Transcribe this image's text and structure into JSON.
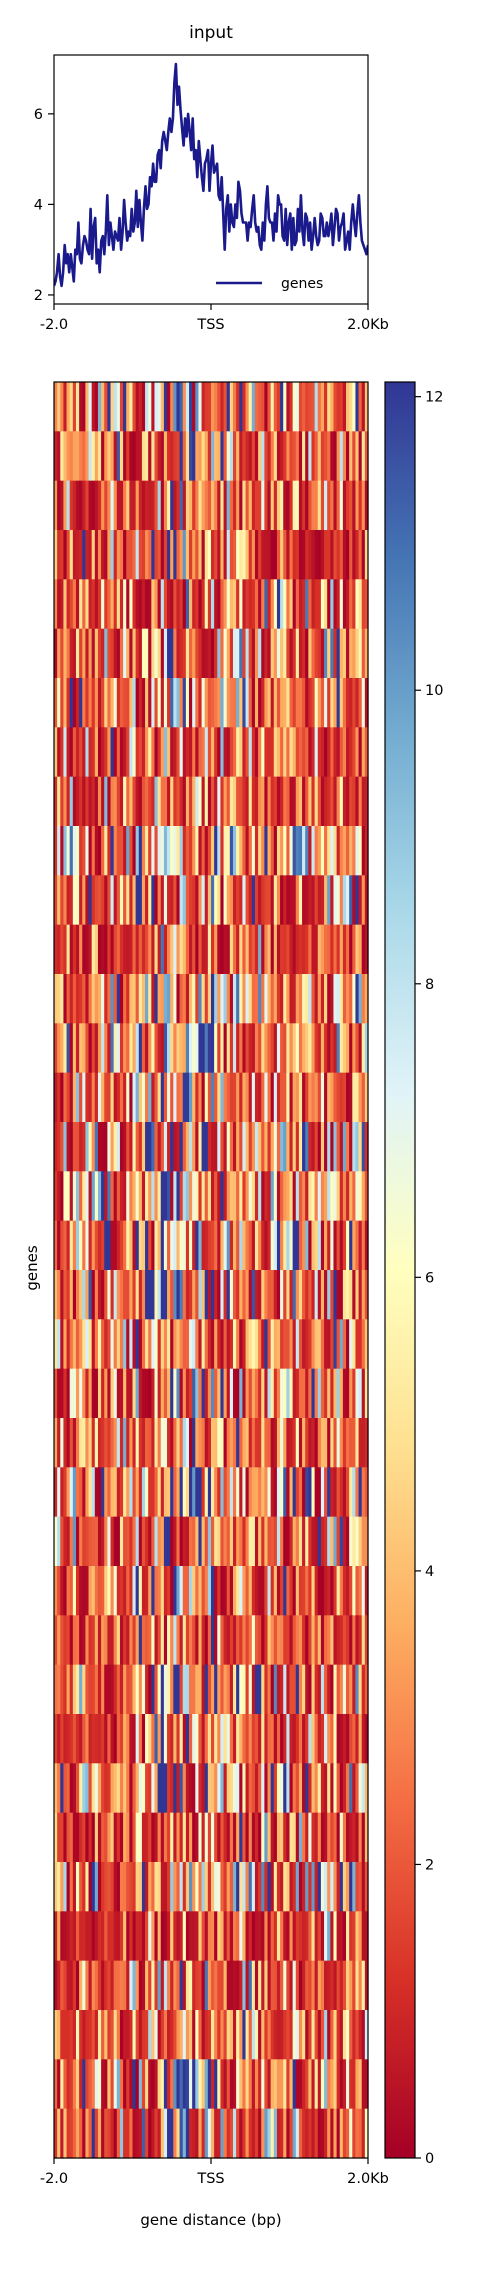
{
  "chart_data": [
    {
      "type": "line",
      "title": "input",
      "xlabel": "",
      "ylabel": "",
      "x_tick_labels": [
        "-2.0",
        "TSS",
        "2.0Kb"
      ],
      "y_ticks": [
        2,
        4,
        6
      ],
      "ylim": [
        1.8,
        7.3
      ],
      "xlim": [
        -2000,
        2000
      ],
      "legend": {
        "placement": "lower-right",
        "entries": [
          "genes"
        ]
      },
      "series": [
        {
          "name": "genes",
          "color": "#1a1a8c",
          "x_step_bp": 40,
          "values": [
            2.2,
            2.3,
            2.5,
            2.9,
            2.4,
            2.2,
            2.5,
            3.1,
            2.7,
            2.9,
            2.5,
            2.9,
            2.6,
            2.3,
            3.0,
            2.9,
            3.6,
            2.8,
            2.7,
            3.1,
            3.3,
            3.2,
            3.0,
            2.9,
            3.9,
            2.8,
            3.5,
            3.7,
            2.7,
            3.0,
            2.5,
            3.2,
            3.3,
            2.9,
            3.4,
            4.2,
            3.1,
            3.6,
            3.3,
            3.0,
            3.4,
            3.3,
            3.2,
            3.7,
            3.0,
            3.4,
            4.1,
            3.6,
            3.2,
            3.4,
            3.3,
            3.9,
            3.4,
            3.6,
            4.3,
            3.5,
            4.1,
            3.6,
            3.2,
            3.9,
            4.4,
            3.9,
            4.0,
            4.6,
            4.4,
            4.9,
            4.5,
            4.5,
            5.1,
            5.2,
            4.8,
            5.4,
            5.6,
            5.4,
            5.2,
            5.6,
            5.9,
            5.6,
            5.9,
            6.7,
            7.1,
            6.2,
            6.6,
            6.1,
            5.7,
            5.3,
            5.9,
            5.5,
            6.0,
            5.6,
            5.2,
            5.9,
            5.0,
            5.2,
            4.6,
            5.4,
            5.0,
            4.6,
            4.3,
            4.9,
            5.0,
            5.2,
            4.3,
            4.9,
            5.3,
            4.7,
            4.8,
            4.9,
            4.2,
            4.1,
            4.6,
            3.8,
            3.0,
            3.9,
            4.2,
            3.4,
            4.0,
            3.6,
            3.5,
            4.0,
            3.7,
            4.5,
            4.3,
            3.8,
            3.6,
            3.6,
            3.6,
            3.2,
            3.6,
            3.5,
            3.9,
            4.2,
            3.6,
            3.4,
            3.5,
            3.1,
            3.0,
            3.6,
            3.2,
            4.0,
            4.4,
            3.7,
            3.6,
            3.6,
            3.2,
            3.8,
            3.4,
            4.2,
            4.0,
            4.0,
            3.3,
            3.2,
            3.9,
            3.1,
            3.6,
            3.8,
            3.0,
            3.7,
            3.1,
            3.2,
            3.9,
            3.4,
            4.2,
            3.4,
            3.1,
            3.8,
            3.7,
            3.2,
            3.6,
            3.0,
            3.3,
            3.7,
            3.3,
            3.1,
            3.2,
            3.8,
            3.7,
            3.3,
            3.3,
            3.6,
            3.3,
            3.5,
            3.8,
            3.1,
            3.5,
            3.9,
            3.8,
            3.2,
            3.5,
            3.6,
            3.8,
            3.0,
            3.2,
            3.4,
            3.0,
            3.6,
            4.0,
            3.6,
            3.3,
            3.8,
            4.2,
            3.6,
            3.2,
            3.1,
            3.0,
            2.9,
            3.1
          ]
        }
      ]
    },
    {
      "type": "heatmap",
      "title": "",
      "xlabel": "gene distance (bp)",
      "ylabel": "genes",
      "x_tick_labels": [
        "-2.0",
        "TSS",
        "2.0Kb"
      ],
      "colormap": "RdYlBu",
      "colormap_stops": [
        "#a50026",
        "#d73027",
        "#f46d43",
        "#fdae61",
        "#fee090",
        "#ffffbf",
        "#e0f3f8",
        "#abd9e9",
        "#74add1",
        "#4575b4",
        "#313695"
      ],
      "value_range": [
        0,
        12.1
      ],
      "colorbar_ticks": [
        0,
        2,
        4,
        6,
        8,
        10,
        12
      ],
      "rows": 36,
      "bins": 100
    }
  ]
}
